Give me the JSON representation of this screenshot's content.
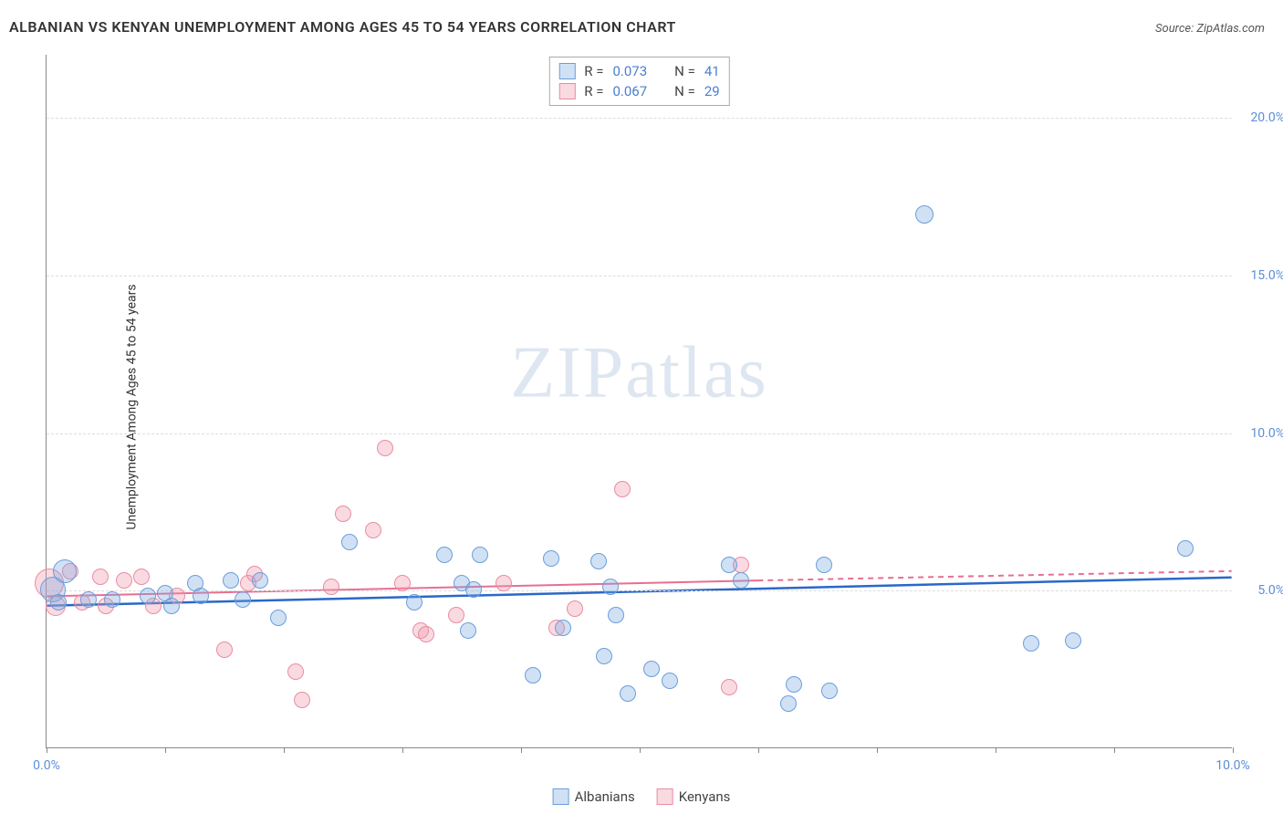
{
  "title": "ALBANIAN VS KENYAN UNEMPLOYMENT AMONG AGES 45 TO 54 YEARS CORRELATION CHART",
  "source": "Source: ZipAtlas.com",
  "ylabel": "Unemployment Among Ages 45 to 54 years",
  "watermark_left": "ZIP",
  "watermark_right": "atlas",
  "chart": {
    "type": "scatter",
    "xlim": [
      0,
      10
    ],
    "ylim": [
      0,
      22
    ],
    "x_ticks": [
      0,
      1,
      2,
      3,
      4,
      5,
      6,
      7,
      8,
      9,
      10
    ],
    "x_tick_labels": {
      "0": "0.0%",
      "10": "10.0%"
    },
    "y_ticks": [
      5,
      10,
      15,
      20
    ],
    "y_tick_labels": {
      "5": "5.0%",
      "10": "10.0%",
      "15": "15.0%",
      "20": "20.0%"
    },
    "background_color": "#ffffff",
    "grid_color": "#dddddd",
    "axis_color": "#888888",
    "tick_label_color": "#5a8fd6",
    "series": {
      "albanians": {
        "label": "Albanians",
        "fill": "rgba(122,168,224,0.35)",
        "stroke": "#6a9edc",
        "marker_radius": 9,
        "trend": {
          "color": "#2a68c8",
          "width": 2.5,
          "y0": 4.5,
          "y1": 5.4,
          "x0": 0,
          "x1": 10
        },
        "stats": {
          "R": "0.073",
          "N": "41"
        },
        "points": [
          {
            "x": 0.05,
            "y": 5.0,
            "r": 14
          },
          {
            "x": 0.15,
            "y": 5.6,
            "r": 13
          },
          {
            "x": 0.1,
            "y": 4.6
          },
          {
            "x": 0.35,
            "y": 4.7
          },
          {
            "x": 0.55,
            "y": 4.7
          },
          {
            "x": 0.85,
            "y": 4.8
          },
          {
            "x": 1.0,
            "y": 4.9
          },
          {
            "x": 1.05,
            "y": 4.5
          },
          {
            "x": 1.25,
            "y": 5.2
          },
          {
            "x": 1.3,
            "y": 4.8
          },
          {
            "x": 1.55,
            "y": 5.3
          },
          {
            "x": 1.65,
            "y": 4.7
          },
          {
            "x": 1.8,
            "y": 5.3
          },
          {
            "x": 1.95,
            "y": 4.1
          },
          {
            "x": 2.55,
            "y": 6.5
          },
          {
            "x": 3.1,
            "y": 4.6
          },
          {
            "x": 3.35,
            "y": 6.1
          },
          {
            "x": 3.5,
            "y": 5.2
          },
          {
            "x": 3.6,
            "y": 5.0
          },
          {
            "x": 3.65,
            "y": 6.1
          },
          {
            "x": 3.55,
            "y": 3.7
          },
          {
            "x": 4.1,
            "y": 2.3
          },
          {
            "x": 4.25,
            "y": 6.0
          },
          {
            "x": 4.35,
            "y": 3.8
          },
          {
            "x": 4.65,
            "y": 5.9
          },
          {
            "x": 4.7,
            "y": 2.9
          },
          {
            "x": 4.8,
            "y": 4.2
          },
          {
            "x": 4.75,
            "y": 5.1
          },
          {
            "x": 4.9,
            "y": 1.7
          },
          {
            "x": 5.1,
            "y": 2.5
          },
          {
            "x": 5.25,
            "y": 2.1
          },
          {
            "x": 5.75,
            "y": 5.8
          },
          {
            "x": 6.25,
            "y": 1.4
          },
          {
            "x": 6.3,
            "y": 2.0
          },
          {
            "x": 6.55,
            "y": 5.8
          },
          {
            "x": 6.6,
            "y": 1.8
          },
          {
            "x": 7.4,
            "y": 16.9,
            "r": 10
          },
          {
            "x": 8.3,
            "y": 3.3
          },
          {
            "x": 8.65,
            "y": 3.4
          },
          {
            "x": 9.6,
            "y": 6.3
          },
          {
            "x": 5.85,
            "y": 5.3
          }
        ]
      },
      "kenyans": {
        "label": "Kenyans",
        "fill": "rgba(240,150,170,0.35)",
        "stroke": "#e88ca3",
        "marker_radius": 9,
        "trend": {
          "color": "#e86f91",
          "width": 2,
          "y0": 4.8,
          "y1": 5.3,
          "x0": 0,
          "x1": 6,
          "dash_to": 10,
          "y_dash_end": 5.6
        },
        "stats": {
          "R": "0.067",
          "N": "29"
        },
        "points": [
          {
            "x": 0.02,
            "y": 5.2,
            "r": 16
          },
          {
            "x": 0.08,
            "y": 4.5,
            "r": 11
          },
          {
            "x": 0.3,
            "y": 4.6
          },
          {
            "x": 0.45,
            "y": 5.4
          },
          {
            "x": 0.5,
            "y": 4.5
          },
          {
            "x": 0.8,
            "y": 5.4
          },
          {
            "x": 0.9,
            "y": 4.5
          },
          {
            "x": 1.1,
            "y": 4.8
          },
          {
            "x": 1.5,
            "y": 3.1
          },
          {
            "x": 1.7,
            "y": 5.2
          },
          {
            "x": 1.75,
            "y": 5.5
          },
          {
            "x": 2.1,
            "y": 2.4
          },
          {
            "x": 2.15,
            "y": 1.5
          },
          {
            "x": 2.4,
            "y": 5.1
          },
          {
            "x": 2.5,
            "y": 7.4
          },
          {
            "x": 2.75,
            "y": 6.9
          },
          {
            "x": 2.85,
            "y": 9.5
          },
          {
            "x": 3.0,
            "y": 5.2
          },
          {
            "x": 3.15,
            "y": 3.7
          },
          {
            "x": 3.2,
            "y": 3.6
          },
          {
            "x": 3.45,
            "y": 4.2
          },
          {
            "x": 3.85,
            "y": 5.2
          },
          {
            "x": 4.3,
            "y": 3.8
          },
          {
            "x": 4.45,
            "y": 4.4
          },
          {
            "x": 4.85,
            "y": 8.2
          },
          {
            "x": 5.75,
            "y": 1.9
          },
          {
            "x": 5.85,
            "y": 5.8
          },
          {
            "x": 0.65,
            "y": 5.3
          },
          {
            "x": 0.2,
            "y": 5.6
          }
        ]
      }
    }
  },
  "legend_top": {
    "r_label": "R =",
    "n_label": "N ="
  },
  "legend_bottom": {
    "items": [
      "albanians",
      "kenyans"
    ]
  }
}
